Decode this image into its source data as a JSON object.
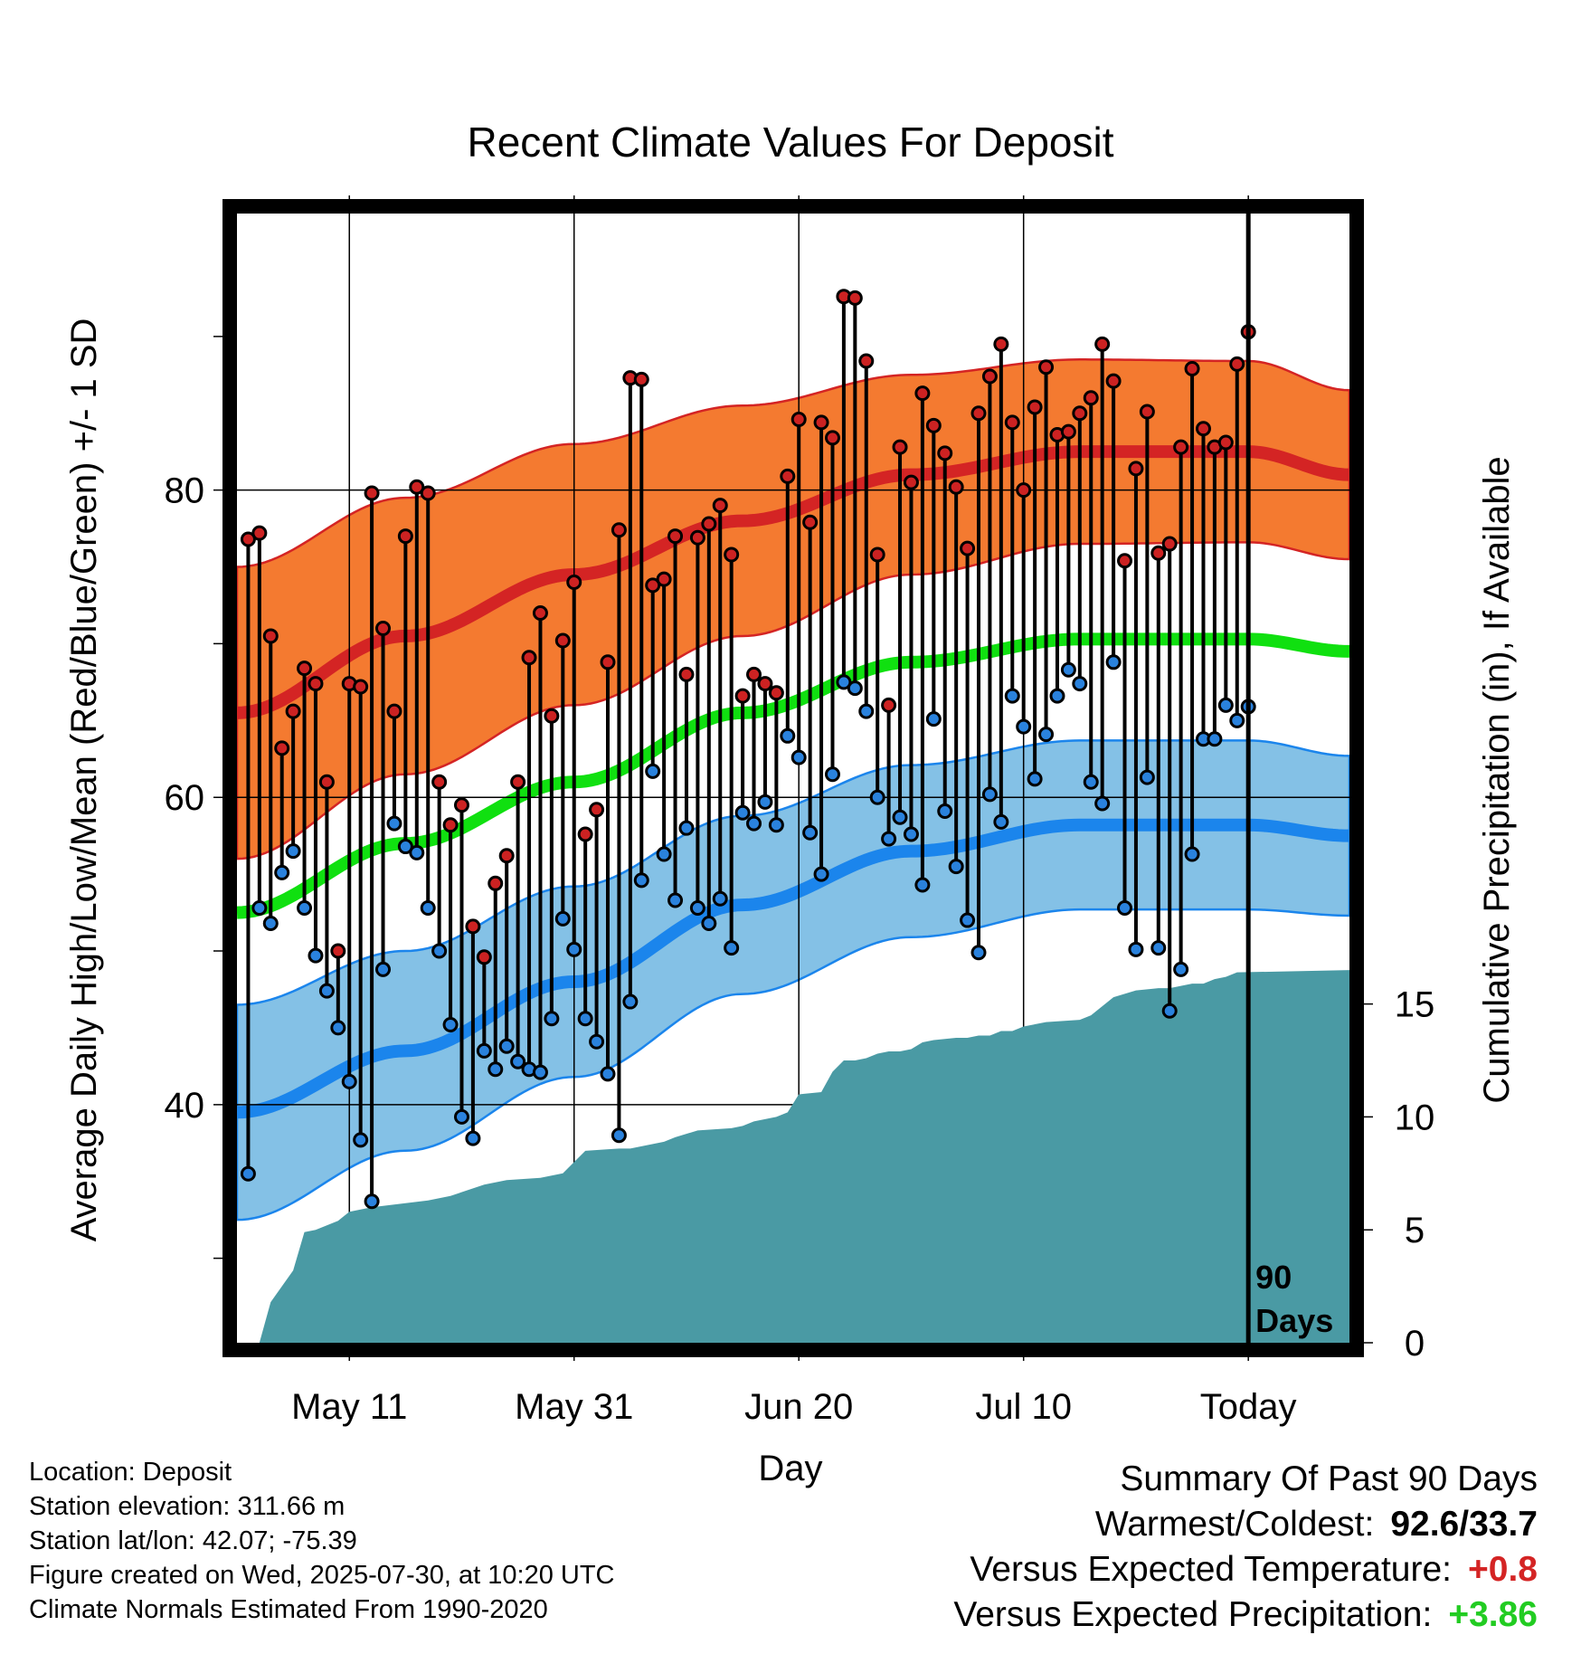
{
  "chart_data": {
    "type": "line",
    "title": "Recent Climate Values For Deposit",
    "xlabel": "Day",
    "ylabel": "Average Daily High/Low/Mean (Red/Blue/Green) +/- 1 SD",
    "y2label": "Cumulative Precipitation (in), If Available",
    "x_tick_labels": [
      "May 11",
      "May 31",
      "Jun 20",
      "Jul 10",
      "Today"
    ],
    "y_ticks": [
      40,
      60,
      80
    ],
    "ylim": [
      24.5,
      98
    ],
    "y2_ticks": [
      0,
      5,
      10,
      15
    ],
    "y2lim": [
      0,
      50
    ],
    "xlim_days": [
      -90,
      9
    ],
    "grid": true,
    "today_marker_label": [
      "90",
      "Days"
    ],
    "colors": {
      "high_band": "#f47a30",
      "high_line": "#d42424",
      "low_band": "#84c1e6",
      "low_line": "#1b85ec",
      "mean_line": "#10e010",
      "precip": "#4a9aa4",
      "high_point": "#cc2222",
      "low_point": "#2a82dd"
    },
    "normals": {
      "day": [
        -90,
        -75,
        -60,
        -45,
        -30,
        -15,
        0,
        9
      ],
      "high_mean": [
        65.5,
        70.5,
        74.5,
        78.0,
        81.0,
        82.5,
        82.5,
        81.0
      ],
      "high_sd": [
        9.5,
        9.0,
        8.5,
        7.5,
        6.5,
        6.0,
        5.9,
        5.5
      ],
      "low_mean": [
        39.5,
        43.5,
        48.0,
        53.0,
        56.5,
        58.2,
        58.2,
        57.5
      ],
      "low_sd": [
        7.0,
        6.5,
        6.2,
        5.8,
        5.6,
        5.5,
        5.5,
        5.2
      ],
      "mean_mean": [
        52.5,
        57.0,
        61.0,
        65.5,
        68.8,
        70.3,
        70.3,
        69.5
      ]
    },
    "series": [
      {
        "name": "Daily High",
        "values": [
          76.8,
          77.2,
          70.5,
          63.2,
          65.6,
          68.4,
          67.4,
          61.0,
          50.0,
          67.4,
          67.2,
          79.8,
          71.0,
          65.6,
          77.0,
          80.2,
          79.8,
          61.0,
          58.2,
          59.5,
          51.6,
          49.6,
          54.4,
          56.2,
          61.0,
          69.1,
          72.0,
          65.3,
          70.2,
          74.0,
          57.6,
          59.2,
          68.8,
          77.4,
          87.3,
          87.2,
          73.8,
          74.2,
          77.0,
          68.0,
          76.9,
          77.8,
          79.0,
          75.8,
          66.6,
          68.0,
          67.4,
          66.8,
          80.9,
          84.6,
          77.9,
          84.4,
          83.4,
          92.6,
          92.5,
          88.4,
          75.8,
          66.0,
          82.8,
          80.5,
          86.3,
          84.2,
          82.4,
          80.2,
          76.2,
          85.0,
          87.4,
          89.5,
          84.4,
          80.0,
          85.4,
          88.0,
          83.6,
          83.8,
          85.0,
          86.0,
          89.5,
          87.1,
          75.4,
          81.4,
          85.1,
          75.9,
          76.5,
          82.8,
          87.9,
          84.0,
          82.8,
          83.1,
          88.2,
          90.3
        ],
        "low_values": [
          35.5,
          52.8,
          51.8,
          55.1,
          56.5,
          52.8,
          49.7,
          47.4,
          45.0,
          41.5,
          37.7,
          33.7,
          48.8,
          58.3,
          56.8,
          56.4,
          52.8,
          50.0,
          45.2,
          39.2,
          37.8,
          43.5,
          42.3,
          43.8,
          42.8,
          42.3,
          42.1,
          45.6,
          52.1,
          50.1,
          45.6,
          44.1,
          42.0,
          38.0,
          46.7,
          54.6,
          61.7,
          56.3,
          53.3,
          58.0,
          52.8,
          51.8,
          53.4,
          50.2,
          59.0,
          58.3,
          59.7,
          58.2,
          64.0,
          62.6,
          57.7,
          55.0,
          61.5,
          67.5,
          67.1,
          65.6,
          60.0,
          57.3,
          58.7,
          57.6,
          54.3,
          65.1,
          59.1,
          55.5,
          52.0,
          49.9,
          60.2,
          58.4,
          66.6,
          64.6,
          61.2,
          64.1,
          66.6,
          68.3,
          67.4,
          61.0,
          59.6,
          68.8,
          52.8,
          50.1,
          61.3,
          50.2,
          46.1,
          48.8,
          56.3,
          63.8,
          63.8,
          66.0,
          65.0,
          65.9
        ]
      },
      {
        "name": "Cumulative Precipitation",
        "day": [
          -88,
          -87,
          -86,
          -85,
          -84,
          -83,
          -81,
          -80,
          -78,
          -73,
          -71,
          -68,
          -66,
          -63,
          -61,
          -59,
          -56,
          -55,
          -54,
          -52,
          -51,
          -49,
          -46,
          -45,
          -44,
          -42,
          -41,
          -40,
          -38,
          -37,
          -36,
          -35,
          -34,
          -33,
          -32,
          -31,
          -30,
          -29,
          -28,
          -26,
          -25,
          -24,
          -23,
          -22,
          -21,
          -20,
          -18,
          -15,
          -14,
          -12,
          -10,
          -8,
          -7,
          -6,
          -5,
          -4,
          -3,
          -2,
          -1,
          9
        ],
        "values": [
          0.0,
          1.8,
          2.5,
          3.2,
          4.9,
          5.0,
          5.4,
          5.8,
          6.0,
          6.3,
          6.5,
          7.0,
          7.2,
          7.3,
          7.5,
          8.5,
          8.6,
          8.6,
          8.7,
          8.9,
          9.1,
          9.4,
          9.5,
          9.6,
          9.8,
          10.0,
          10.2,
          11.0,
          11.1,
          12.0,
          12.5,
          12.5,
          12.6,
          12.8,
          12.9,
          12.9,
          13.0,
          13.3,
          13.4,
          13.5,
          13.5,
          13.6,
          13.6,
          13.8,
          13.8,
          14.0,
          14.2,
          14.3,
          14.5,
          15.3,
          15.6,
          15.7,
          15.7,
          15.8,
          15.9,
          15.9,
          16.1,
          16.2,
          16.4,
          16.5
        ]
      }
    ]
  },
  "info": {
    "location": "Location: Deposit",
    "elevation": "Station elevation: 311.66 m",
    "latlon": "Station lat/lon: 42.07; -75.39",
    "created": "Figure created on Wed, 2025-07-30, at 10:20 UTC",
    "normals": "Climate Normals Estimated From 1990-2020"
  },
  "summary": {
    "heading": "Summary Of Past 90 Days",
    "warmest_label": "Warmest/Coldest:",
    "warmest_value": "92.6/33.7",
    "temp_label": "Versus Expected Temperature:",
    "temp_value": "+0.8",
    "temp_color": "#d42424",
    "precip_label": "Versus Expected Precipitation:",
    "precip_value": "+3.86",
    "precip_color": "#22cc22"
  }
}
